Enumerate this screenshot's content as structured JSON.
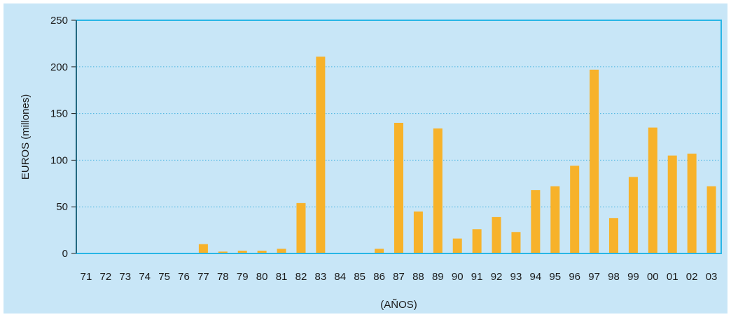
{
  "colors": {
    "background": "#c8e6f7",
    "plot_border": "#29b6e6",
    "bar": "#f7b22a",
    "grid": "#45b3e0",
    "axis": "#1a1a1a"
  },
  "chart_data": {
    "type": "bar",
    "title": "",
    "xlabel": "(AÑOS)",
    "ylabel": "EUROS (millones)",
    "ylim": [
      0,
      250
    ],
    "yticks": [
      "0",
      "50",
      "100",
      "150",
      "200",
      "250"
    ],
    "grid": "horizontal dotted",
    "categories": [
      "71",
      "72",
      "73",
      "74",
      "75",
      "76",
      "77",
      "78",
      "79",
      "80",
      "81",
      "82",
      "83",
      "84",
      "85",
      "86",
      "87",
      "88",
      "89",
      "90",
      "91",
      "92",
      "93",
      "94",
      "95",
      "96",
      "97",
      "98",
      "99",
      "00",
      "01",
      "02",
      "03"
    ],
    "values": [
      0,
      0,
      0,
      0,
      0,
      0,
      10,
      2,
      3,
      3,
      5,
      54,
      211,
      0,
      0,
      5,
      140,
      45,
      134,
      16,
      26,
      39,
      23,
      68,
      72,
      94,
      197,
      38,
      82,
      135,
      105,
      107,
      72
    ]
  }
}
